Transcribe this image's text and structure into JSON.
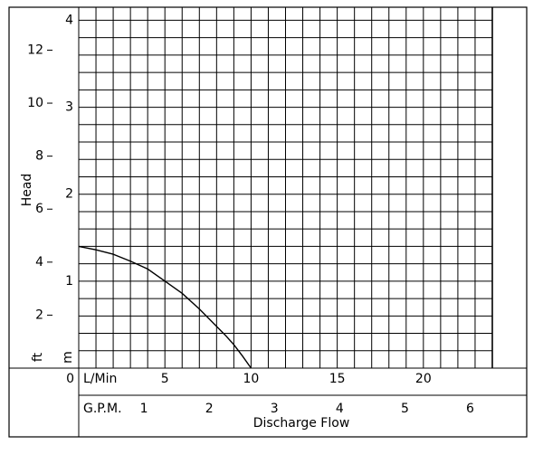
{
  "chart_data": {
    "type": "line",
    "x_label": "Discharge Flow",
    "y_label": "Head",
    "x_unit": "L/Min",
    "x2_unit": "G.P.M.",
    "y_unit": "m",
    "y2_unit": "ft",
    "x": [
      0,
      1,
      2,
      3,
      4,
      5,
      6,
      7,
      8,
      8.5,
      9,
      9.5,
      10
    ],
    "series": [
      {
        "name": "Head",
        "color": "#000000",
        "values": [
          1.4,
          1.36,
          1.31,
          1.23,
          1.14,
          1.0,
          0.86,
          0.68,
          0.48,
          0.38,
          0.27,
          0.14,
          0.0
        ]
      }
    ],
    "xlim": [
      0,
      24
    ],
    "xticks": [
      0,
      5,
      10,
      15,
      20
    ],
    "x2lim": [
      0,
      6.34
    ],
    "x2ticks": [
      1,
      2,
      3,
      4,
      5,
      6
    ],
    "ylim": [
      0,
      4.15
    ],
    "yticks": [
      1,
      2,
      3,
      4
    ],
    "y2lim": [
      0,
      13.62
    ],
    "y2ticks": [
      2,
      4,
      6,
      8,
      10,
      12
    ],
    "grid": {
      "x_step": 1,
      "y_step": 0.2
    }
  }
}
